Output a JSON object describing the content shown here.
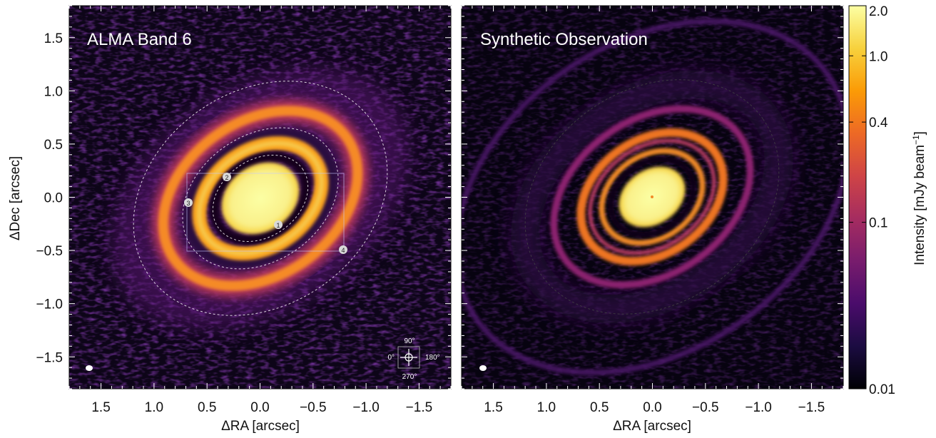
{
  "panels": [
    {
      "title": "ALMA  Band 6",
      "xlabel": "ΔRA [arcsec]",
      "ylabel": "ΔDec [arcsec]",
      "markers": [
        "1",
        "2",
        "3",
        "4"
      ],
      "compass": {
        "top": "90°",
        "left": "0°",
        "right": "180°",
        "bottom": "270°"
      }
    },
    {
      "title": "Synthetic Observation",
      "xlabel": "ΔRA [arcsec]"
    }
  ],
  "colorbar": {
    "label": "Intensity [mJy beam",
    "label_sup": "−1",
    "label_end": "]",
    "ticks": [
      "2.0",
      "1.0",
      "0.4",
      "0.1",
      "0.01"
    ],
    "colors": [
      "#000004",
      "#1b0c41",
      "#4a0c6b",
      "#781c6d",
      "#a52c60",
      "#cf4446",
      "#ed6925",
      "#fb9b06",
      "#f7d13d",
      "#fcffa4"
    ]
  },
  "chart_data": {
    "type": "heatmap",
    "colormap": "inferno",
    "xlim": [
      1.8,
      -1.8
    ],
    "ylim": [
      -1.8,
      1.8
    ],
    "xticks": [
      "1.5",
      "1.0",
      "0.5",
      "0.0",
      "-0.5",
      "-1.0",
      "-1.5"
    ],
    "yticks": [
      "1.5",
      "1.0",
      "0.5",
      "0.0",
      "−0.5",
      "−1.0",
      "−1.5"
    ],
    "colorbar_range": [
      0.01,
      2.0
    ],
    "colorbar_scale": "log"
  }
}
